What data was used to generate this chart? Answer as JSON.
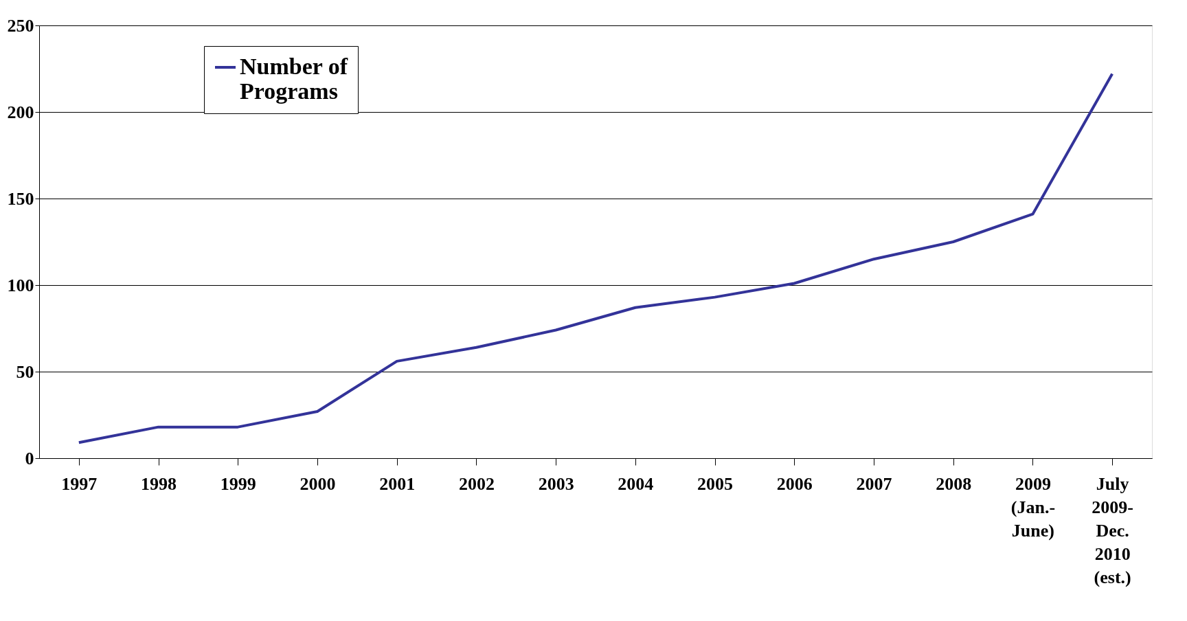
{
  "chart_data": {
    "type": "line",
    "categories": [
      "1997",
      "1998",
      "1999",
      "2000",
      "2001",
      "2002",
      "2003",
      "2004",
      "2005",
      "2006",
      "2007",
      "2008",
      "2009 (Jan.- June)",
      "July 2009- Dec. 2010 (est.)"
    ],
    "series": [
      {
        "name": "Number of Programs",
        "color": "#333399",
        "values": [
          9,
          18,
          18,
          27,
          56,
          64,
          74,
          87,
          93,
          101,
          115,
          125,
          141,
          222
        ]
      }
    ],
    "ylim": [
      0,
      250
    ],
    "yticks": [
      0,
      50,
      100,
      150,
      200,
      250
    ],
    "grid": "y",
    "legend": "top left",
    "marker": "none",
    "line_style": "solid"
  }
}
